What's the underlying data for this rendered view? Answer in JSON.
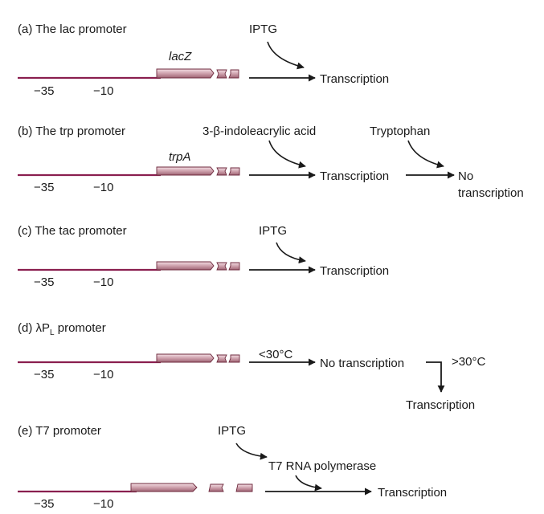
{
  "colors": {
    "dna_line": "#8a1f4f",
    "gene_box_light": "#efd3da",
    "gene_box_dark": "#b47a88",
    "gene_box_stroke": "#6e2a3d",
    "arrow": "#1a1a1a"
  },
  "panels": {
    "a": {
      "title": "(a) The lac promoter",
      "gene_label": "lacZ",
      "minus35": "−35",
      "minus10": "−10",
      "inducer": "IPTG",
      "result": "Transcription"
    },
    "b": {
      "title": "(b) The trp promoter",
      "gene_label": "trpA",
      "minus35": "−35",
      "minus10": "−10",
      "inducer": "3-β-indoleacrylic acid",
      "result": "Transcription",
      "repressor": "Tryptophan",
      "result2_line1": "No",
      "result2_line2": "transcription"
    },
    "c": {
      "title": "(c) The tac promoter",
      "minus35": "−35",
      "minus10": "−10",
      "inducer": "IPTG",
      "result": "Transcription"
    },
    "d": {
      "title_prefix": "(d) λP",
      "title_sub": "L",
      "title_suffix": " promoter",
      "minus35": "−35",
      "minus10": "−10",
      "condition_low": "<30°C",
      "result": "No transcription",
      "condition_high": ">30°C",
      "result2": "Transcription"
    },
    "e": {
      "title": "(e) T7 promoter",
      "minus35": "−35",
      "minus10": "−10",
      "inducer": "IPTG",
      "intermediate": "T7 RNA polymerase",
      "result": "Transcription"
    }
  }
}
